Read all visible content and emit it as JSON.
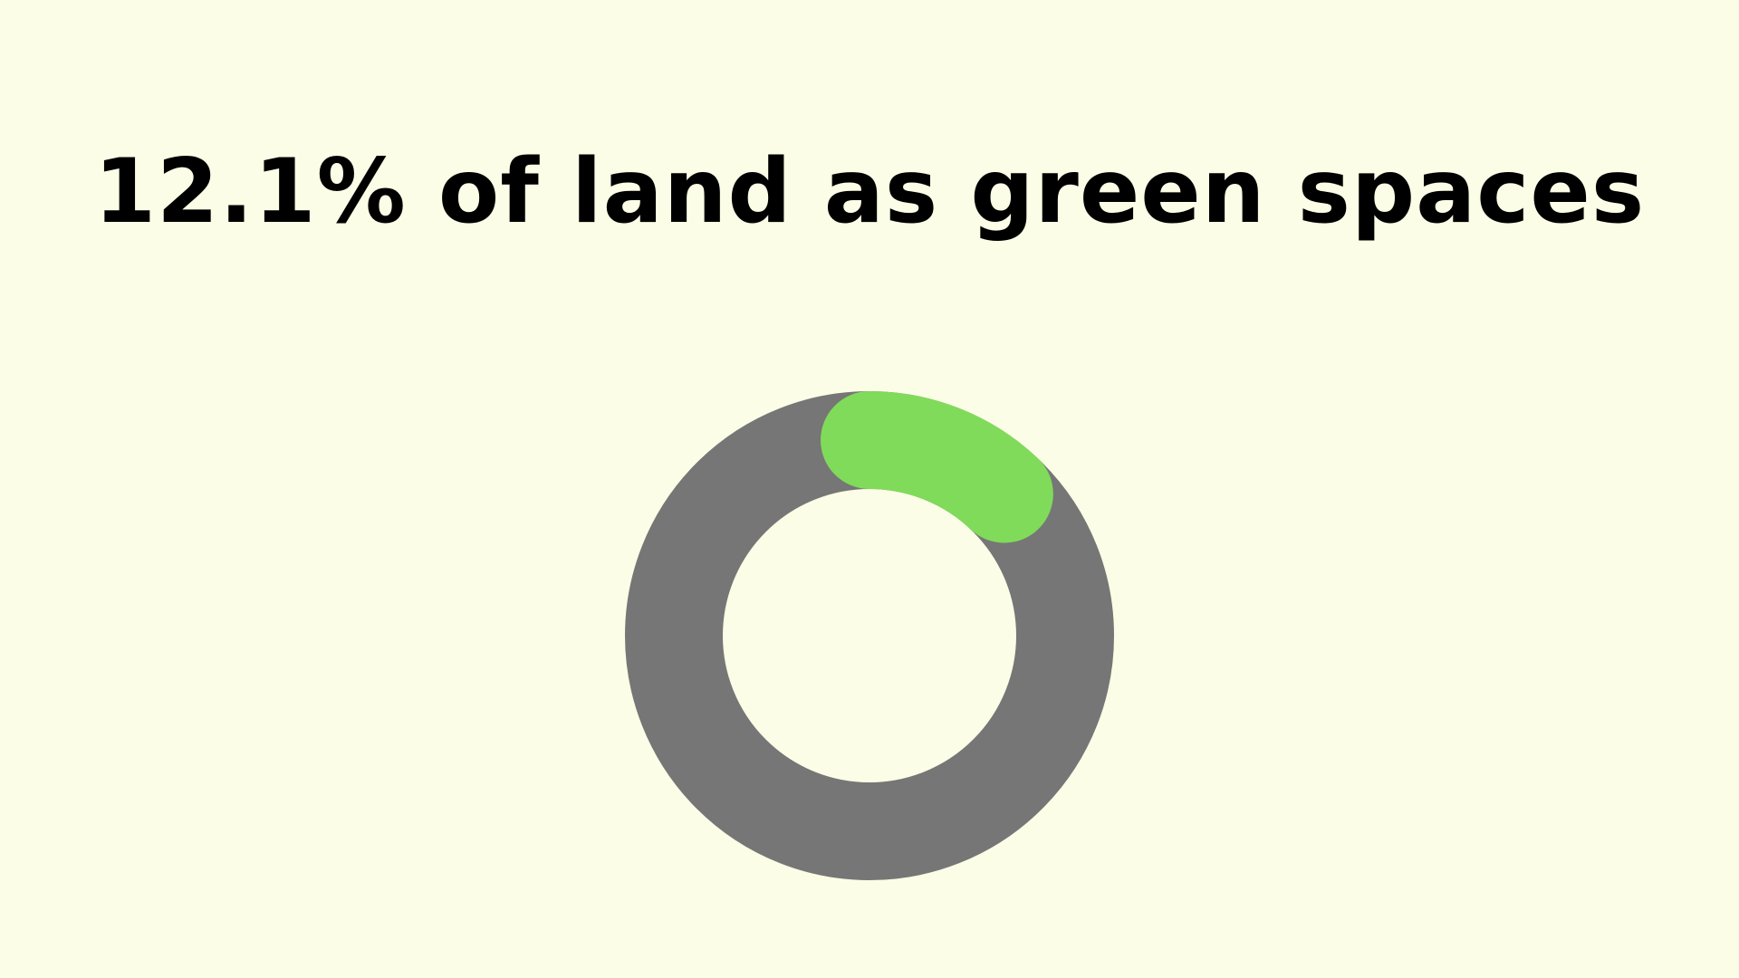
{
  "chart_data": {
    "type": "pie",
    "variant": "donut",
    "title": "12.1% of land as green spaces",
    "slices": [
      {
        "label": "",
        "value": 12.1
      },
      {
        "label": "",
        "value": 87.9
      }
    ],
    "colors": {
      "green_spaces": "#80db5a",
      "track": "#767676",
      "background": "#fbfde6",
      "title": "#000000"
    },
    "rounded_caps": true,
    "start_angle_deg": 0,
    "direction": "clockwise"
  }
}
